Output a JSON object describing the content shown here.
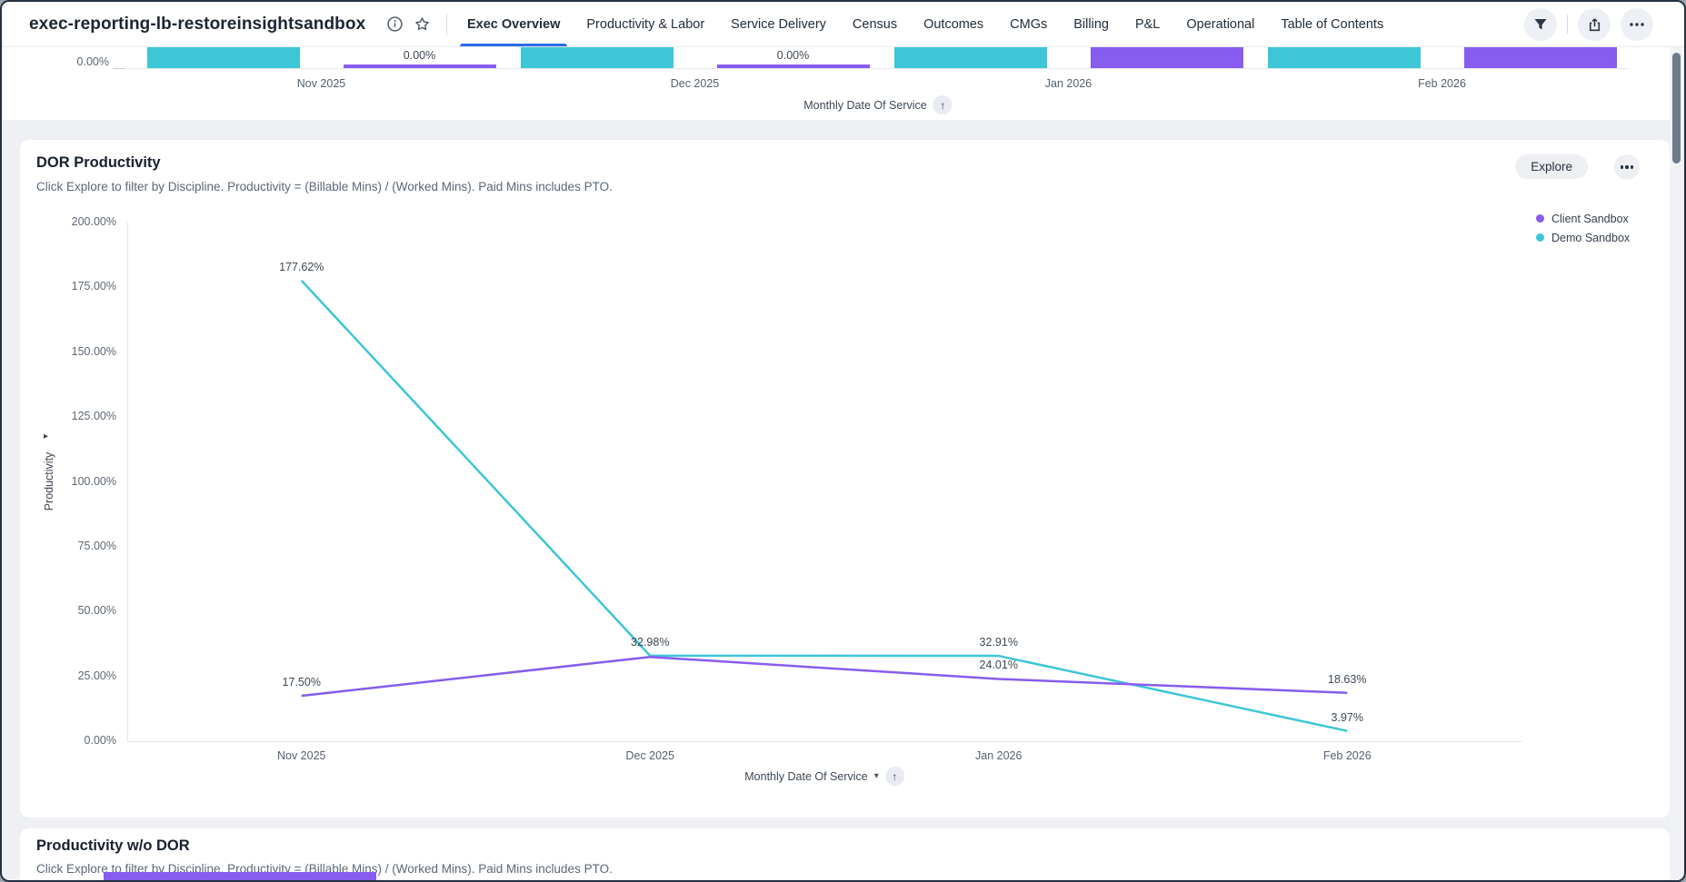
{
  "window_title": "exec-reporting-lb-restoreinsightsandbox",
  "colors": {
    "accent_blue": "#2B6CE8",
    "client_purple": "#875CEF",
    "demo_teal": "#3DC6D6",
    "page_bg": "#EEF0F3",
    "card_bg": "#FFFFFF"
  },
  "header": {
    "tabs": [
      {
        "label": "Exec Overview",
        "active": true
      },
      {
        "label": "Productivity & Labor",
        "active": false
      },
      {
        "label": "Service Delivery",
        "active": false
      },
      {
        "label": "Census",
        "active": false
      },
      {
        "label": "Outcomes",
        "active": false
      },
      {
        "label": "CMGs",
        "active": false
      },
      {
        "label": "Billing",
        "active": false
      },
      {
        "label": "P&L",
        "active": false
      },
      {
        "label": "Operational",
        "active": false
      },
      {
        "label": "Table of Contents",
        "active": false
      }
    ],
    "actions": [
      "filter",
      "share",
      "more"
    ]
  },
  "top_chart": {
    "type": "bar",
    "y_axis_zero_label": "0.00%",
    "x_axis_label": "Monthly Date Of Service",
    "categories": [
      "Nov 2025",
      "Dec 2025",
      "Jan 2026",
      "Feb 2026"
    ],
    "groups": [
      {
        "month": "Nov 2025",
        "demo_bar": "cutoff",
        "client_bar": "zero",
        "client_label": "0.00%"
      },
      {
        "month": "Dec 2025",
        "demo_bar": "cutoff",
        "client_bar": "zero",
        "client_label": "0.00%"
      },
      {
        "month": "Jan 2026",
        "demo_bar": "cutoff",
        "client_bar": "cutoff",
        "client_label": null
      },
      {
        "month": "Feb 2026",
        "demo_bar": "cutoff",
        "client_bar": "cutoff",
        "client_label": null
      }
    ]
  },
  "dor_card": {
    "title": "DOR Productivity",
    "subtitle": "Click Explore to filter by Discipline. Productivity = (Billable Mins) / (Worked Mins). Paid Mins includes PTO.",
    "explore_button": "Explore",
    "legend": [
      {
        "name": "Client Sandbox",
        "color": "#875CEF"
      },
      {
        "name": "Demo Sandbox",
        "color": "#3DC6D6"
      }
    ],
    "y_axis_title": "Productivity",
    "x_axis_label": "Monthly Date Of Service",
    "y_ticks": [
      "200.00%",
      "175.00%",
      "150.00%",
      "125.00%",
      "100.00%",
      "75.00%",
      "50.00%",
      "25.00%",
      "0.00%"
    ]
  },
  "chart_data": {
    "type": "line",
    "title": "DOR Productivity",
    "categories": [
      "Nov 2025",
      "Dec 2025",
      "Jan 2026",
      "Feb 2026"
    ],
    "series": [
      {
        "name": "Client Sandbox",
        "color": "#875CEF",
        "values": [
          17.5,
          32.5,
          24.01,
          18.63
        ],
        "labels": [
          "17.50%",
          null,
          "24.01%",
          "18.63%"
        ]
      },
      {
        "name": "Demo Sandbox",
        "color": "#3DC6D6",
        "values": [
          177.62,
          32.98,
          32.91,
          3.97
        ],
        "labels": [
          "177.62%",
          "32.98%",
          "32.91%",
          "3.97%"
        ]
      }
    ],
    "ylabel": "Productivity",
    "xlabel": "Monthly Date Of Service",
    "ylim": [
      0,
      200
    ],
    "grid": false,
    "legend_position": "top-right"
  },
  "bottom_card": {
    "title": "Productivity w/o DOR",
    "subtitle": "Click Explore to filter by Discipline. Productivity = (Billable Mins) / (Worked Mins). Paid Mins includes PTO."
  }
}
